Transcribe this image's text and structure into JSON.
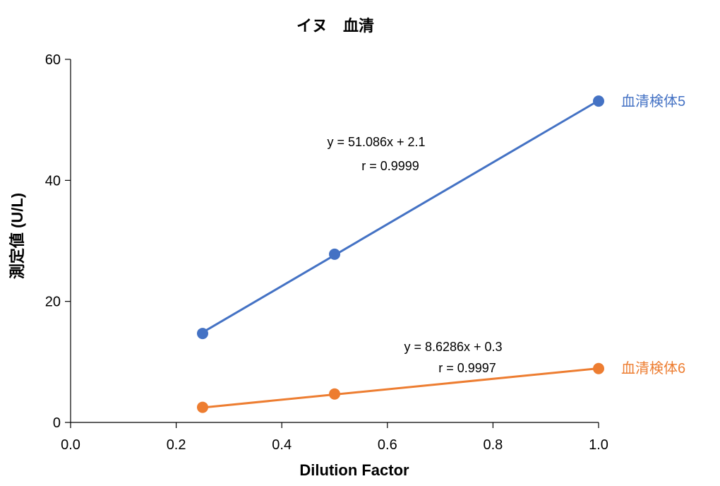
{
  "chart_data": {
    "type": "scatter",
    "title": "イヌ　血清",
    "xlabel": "Dilution Factor",
    "ylabel": "測定値 (U/L)",
    "xlim": [
      0.0,
      1.0
    ],
    "ylim": [
      0,
      60
    ],
    "x_ticks": [
      "0.0",
      "0.2",
      "0.4",
      "0.6",
      "0.8",
      "1.0"
    ],
    "y_ticks": [
      "0",
      "20",
      "40",
      "60"
    ],
    "grid": false,
    "series": [
      {
        "name": "血清検体5",
        "color": "#4472C4",
        "x": [
          0.25,
          0.5,
          1.0
        ],
        "y": [
          14.7,
          27.8,
          53.1
        ],
        "trendline": {
          "slope": 51.086,
          "intercept": 2.1
        },
        "equation": "y = 51.086x + 2.1",
        "r_text": "r = 0.9999"
      },
      {
        "name": "血清検体6",
        "color": "#ED7D31",
        "x": [
          0.25,
          0.5,
          1.0
        ],
        "y": [
          2.5,
          4.7,
          8.9
        ],
        "trendline": {
          "slope": 8.6286,
          "intercept": 0.3
        },
        "equation": "y = 8.6286x + 0.3",
        "r_text": "r = 0.9997"
      }
    ]
  }
}
